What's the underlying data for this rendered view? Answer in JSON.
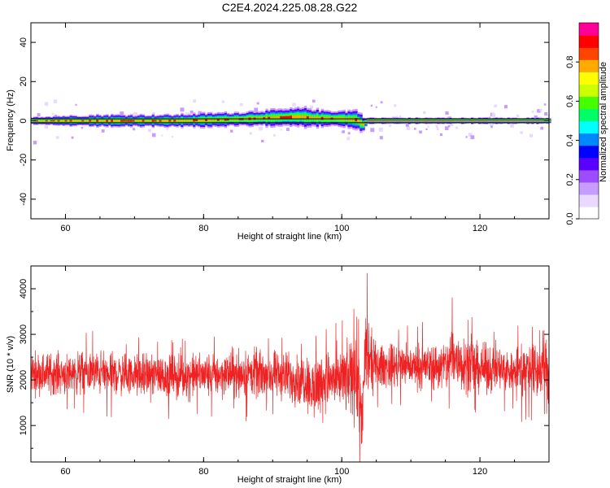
{
  "title": "C2E4.2024.225.08.28.G22",
  "chart_data": [
    {
      "type": "heatmap",
      "xlabel": "Height of straight line (km)",
      "ylabel": "Frequency (Hz)",
      "xlim": [
        55,
        130
      ],
      "ylim": [
        -50,
        50
      ],
      "xticks": [
        60,
        80,
        100,
        120
      ],
      "yticks": [
        -40,
        -20,
        0,
        20,
        40
      ],
      "colorbar": {
        "label": "Normalized spectral amplitude",
        "range": [
          0,
          1
        ],
        "ticks": [
          "0.0",
          "0.2",
          "0.4",
          "0.6",
          "0.8"
        ],
        "colors": [
          "#ffffff",
          "#e9d8ff",
          "#c89cff",
          "#9b4dff",
          "#5a00ff",
          "#0000ff",
          "#0088ff",
          "#00ffff",
          "#00ff66",
          "#44ff00",
          "#ccff00",
          "#ffff00",
          "#ffaa00",
          "#ff4400",
          "#ff0000",
          "#ff0099"
        ]
      },
      "ridge": {
        "x": [
          55,
          60,
          65,
          70,
          75,
          80,
          85,
          88,
          90,
          92,
          94,
          95,
          97,
          100,
          102,
          103,
          103.5,
          105,
          110,
          115,
          120,
          125,
          130
        ],
        "y": [
          0,
          0,
          0,
          0,
          0,
          0.3,
          0.8,
          1.2,
          1.5,
          1.8,
          2,
          1.5,
          1.2,
          1,
          0.5,
          -2,
          0,
          0,
          0,
          0,
          0,
          0,
          0
        ],
        "spread_hz": [
          2,
          2.5,
          3,
          3,
          3,
          3.5,
          3.5,
          4,
          4,
          4,
          4.5,
          5,
          4,
          4,
          5,
          4,
          1.5,
          1.5,
          1.5,
          1.5,
          1.5,
          1.5,
          1.5
        ]
      },
      "model_band_hz": [
        -1,
        1
      ]
    },
    {
      "type": "line",
      "xlabel": "Height of straight line (km)",
      "ylabel": "SNR (10 * v/v)",
      "xlim": [
        55,
        130
      ],
      "ylim": [
        200,
        4500
      ],
      "xticks": [
        60,
        80,
        100,
        120
      ],
      "yticks": [
        1000,
        2000,
        3000,
        4000
      ],
      "color": "#ee2222",
      "envelope": {
        "x": [
          55,
          60,
          65,
          70,
          75,
          80,
          85,
          90,
          93,
          95,
          96,
          97,
          100,
          101,
          102,
          102.5,
          103,
          103.5,
          104,
          105,
          110,
          115,
          116,
          120,
          125,
          128,
          130
        ],
        "mean": [
          2150,
          2150,
          2150,
          2100,
          2100,
          2100,
          2150,
          2100,
          2050,
          2000,
          1700,
          2000,
          2000,
          2000,
          2400,
          1500,
          1200,
          2600,
          2400,
          2300,
          2300,
          2300,
          2500,
          2250,
          2200,
          2200,
          2200
        ],
        "amp": [
          650,
          650,
          700,
          650,
          700,
          700,
          750,
          750,
          800,
          900,
          1100,
          900,
          1000,
          1100,
          1900,
          1400,
          1000,
          1800,
          1100,
          700,
          650,
          800,
          1100,
          750,
          750,
          900,
          1300
        ]
      }
    }
  ]
}
